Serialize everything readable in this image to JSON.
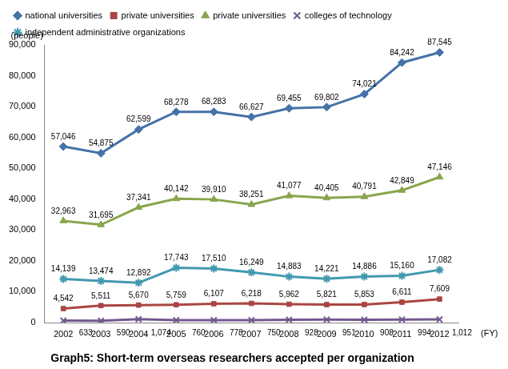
{
  "chart_data": {
    "type": "line",
    "title": "Graph5: Short-term overseas researchers accepted per organization",
    "x_label": "(FY)",
    "y_label": "(people)",
    "categories": [
      "2002",
      "2003",
      "2004",
      "2005",
      "2006",
      "2007",
      "2008",
      "2009",
      "2010",
      "2011",
      "2012"
    ],
    "ylim": [
      0,
      90000
    ],
    "yticks": [
      0,
      {
        "value": 10000,
        "label": "10,000"
      },
      {
        "value": 20000,
        "label": "20,000"
      },
      {
        "value": 30000,
        "label": "30,000"
      },
      {
        "value": 40000,
        "label": "40,000"
      },
      {
        "value": 50000,
        "label": "50,000"
      },
      {
        "value": 60000,
        "label": "60,000"
      },
      {
        "value": 70000,
        "label": "70,000"
      },
      {
        "value": 80000,
        "label": "80,000"
      },
      {
        "value": 90000,
        "label": "90,000"
      }
    ],
    "grid": false,
    "legend": "top",
    "data_labels": true,
    "series": [
      {
        "name": "national universities",
        "color": "#4572a7",
        "marker": "diamond",
        "values": [
          57046,
          54875,
          62599,
          68278,
          68283,
          66627,
          69455,
          69802,
          74021,
          84242,
          87545
        ],
        "value_labels": [
          "57,046",
          "54,875",
          "62,599",
          "68,278",
          "68,283",
          "66,627",
          "69,455",
          "69,802",
          "74,021",
          "84,242",
          "87,545"
        ]
      },
      {
        "name": "private universities",
        "color": "#aa4643",
        "marker": "square",
        "values": [
          4542,
          5511,
          5670,
          5759,
          6107,
          6218,
          5962,
          5821,
          5853,
          6611,
          7609
        ],
        "value_labels": [
          "4,542",
          "5,511",
          "5,670",
          "5,759",
          "6,107",
          "6,218",
          "5,962",
          "5,821",
          "5,853",
          "6,611",
          "7,609"
        ]
      },
      {
        "name": "private universities",
        "color": "#89a54e",
        "marker": "triangle",
        "values": [
          32963,
          31695,
          37341,
          40142,
          39910,
          38251,
          41077,
          40405,
          40791,
          42849,
          47146
        ],
        "value_labels": [
          "32,963",
          "31,695",
          "37,341",
          "40,142",
          "39,910",
          "38,251",
          "41,077",
          "40,405",
          "40,791",
          "42,849",
          "47,146"
        ]
      },
      {
        "name": "colleges of technology",
        "color": "#71588f",
        "marker": "cross",
        "values": [
          633,
          590,
          1074,
          760,
          778,
          750,
          928,
          951,
          908,
          994,
          1012
        ],
        "value_labels": [
          "633",
          "590",
          "1,074",
          "760",
          "778",
          "750",
          "928",
          "951",
          "908",
          "994",
          "1,012"
        ]
      },
      {
        "name": "independent administrative organizations",
        "color": "#4198af",
        "marker": "star",
        "values": [
          14139,
          13474,
          12892,
          17743,
          17510,
          16249,
          14883,
          14221,
          14886,
          15160,
          17082
        ],
        "value_labels": [
          "14,139",
          "13,474",
          "12,892",
          "17,743",
          "17,510",
          "16,249",
          "14,883",
          "14,221",
          "14,886",
          "15,160",
          "17,082"
        ]
      }
    ]
  }
}
